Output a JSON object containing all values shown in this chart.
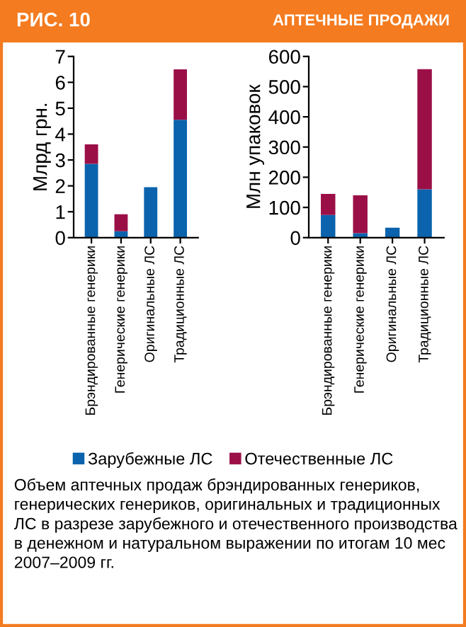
{
  "chart_data": [
    {
      "type": "bar",
      "title": "РИС. 10",
      "ylabel": "Млрд грн.",
      "stacked": true,
      "categories": [
        "Брэндированные генерики",
        "Генерические генерики",
        "Оригинальные ЛС",
        "Традиционные ЛС"
      ],
      "series": [
        {
          "name": "Зарубежные ЛС",
          "color": "#0b63ad",
          "values": [
            2.85,
            0.25,
            1.95,
            4.55
          ]
        },
        {
          "name": "Отечественные ЛС",
          "color": "#9b0f47",
          "values": [
            0.75,
            0.65,
            0,
            1.95
          ]
        }
      ],
      "ylim": [
        0,
        7
      ],
      "yticks": [
        0,
        1,
        2,
        3,
        4,
        5,
        6,
        7
      ],
      "grid": false,
      "legend": "bottom",
      "annotations": [
        "Объем аптечных продаж брэндированных генериков, генерических генериков, оригинальных и традиционных ЛС в разрезе зарубежного и отечественного производства в денежном и натуральном выражении по итогам 10 мес 2007–2009 гг."
      ]
    },
    {
      "type": "bar",
      "title": "АПТЕЧНЫЕ ПРОДАЖИ",
      "ylabel": "Млн упаковок",
      "stacked": true,
      "categories": [
        "Брэндированные генерики",
        "Генерические генерики",
        "Оригинальные ЛС",
        "Традиционные ЛС"
      ],
      "series": [
        {
          "color": "#0b63ad",
          "values": [
            75,
            15,
            33,
            160
          ]
        },
        {
          "color": "#9b0f47",
          "values": [
            70,
            125,
            0,
            398
          ]
        }
      ],
      "ylim": [
        0,
        600
      ],
      "yticks": [
        0,
        100,
        200,
        300,
        400,
        500,
        600
      ],
      "grid": false
    }
  ]
}
